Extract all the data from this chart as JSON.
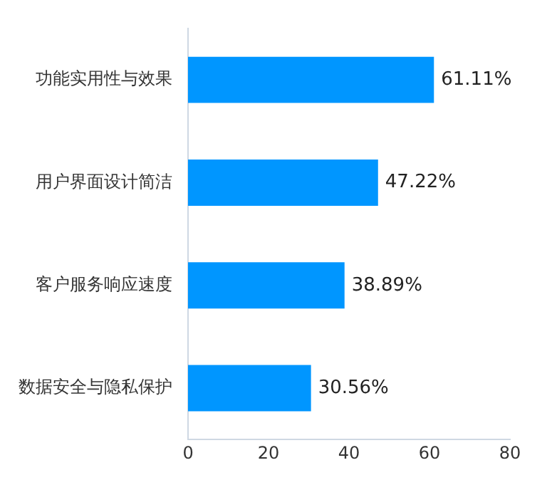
{
  "chart_data": {
    "type": "bar",
    "orientation": "horizontal",
    "categories": [
      "功能实用性与效果",
      "用户界面设计简洁",
      "客户服务响应速度",
      "数据安全与隐私保护"
    ],
    "values": [
      61.11,
      47.22,
      38.89,
      30.56
    ],
    "value_labels": [
      "61.11%",
      "47.22%",
      "38.89%",
      "30.56%"
    ],
    "color": "#0096ff",
    "xlim": [
      0,
      80
    ],
    "xticks": [
      0,
      20,
      40,
      60,
      80
    ],
    "grid": false,
    "legend": false
  }
}
